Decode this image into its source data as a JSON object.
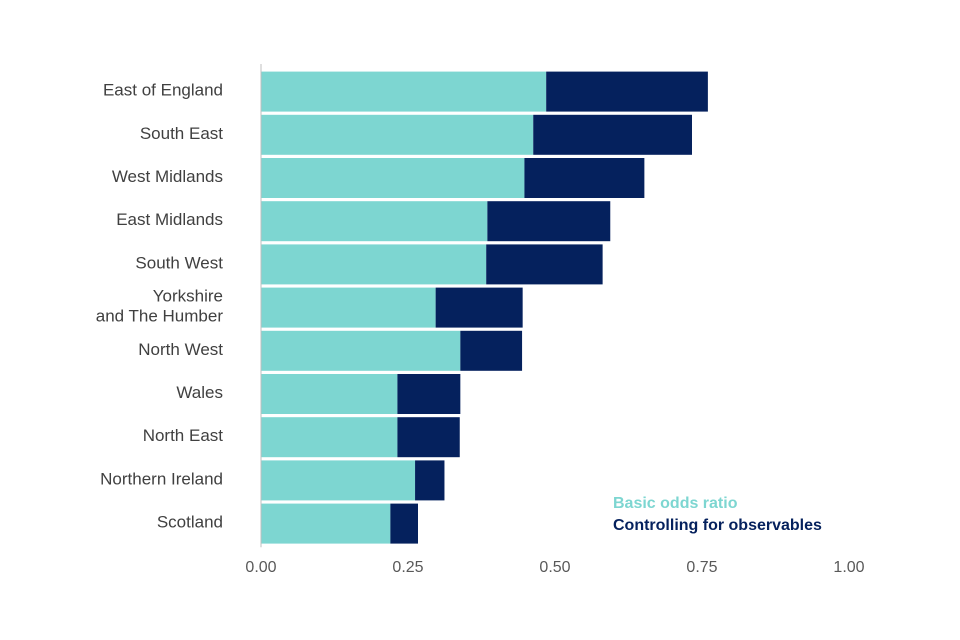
{
  "chart_data": {
    "type": "bar",
    "orientation": "horizontal",
    "stacked": true,
    "title": "",
    "xlabel": "",
    "ylabel": "",
    "categories": [
      "East of England",
      "South East",
      "West Midlands",
      "East Midlands",
      "South West",
      "Yorkshire and The Humber",
      "North West",
      "Wales",
      "North East",
      "Northern Ireland",
      "Scotland"
    ],
    "category_lines": [
      [
        "East of England"
      ],
      [
        "South East"
      ],
      [
        "West Midlands"
      ],
      [
        "East Midlands"
      ],
      [
        "South West"
      ],
      [
        "Yorkshire",
        "and The Humber"
      ],
      [
        "North West"
      ],
      [
        "Wales"
      ],
      [
        "North East"
      ],
      [
        "Northern Ireland"
      ],
      [
        "Scotland"
      ]
    ],
    "series": [
      {
        "name": "Basic odds ratio",
        "color": "#7dd6d1",
        "values": [
          0.485,
          0.463,
          0.448,
          0.385,
          0.383,
          0.297,
          0.339,
          0.232,
          0.232,
          0.262,
          0.22
        ]
      },
      {
        "name": "Controlling for observables",
        "color": "#05215d",
        "values": [
          0.275,
          0.27,
          0.204,
          0.209,
          0.198,
          0.148,
          0.105,
          0.107,
          0.106,
          0.05,
          0.047
        ]
      }
    ],
    "xlim": [
      0,
      1
    ],
    "xticks": [
      0,
      0.25,
      0.5,
      0.75,
      1
    ],
    "xtick_labels": [
      "0.00",
      "0.25",
      "0.50",
      "0.75",
      "1.00"
    ],
    "grid": false,
    "legend_position": "bottom-right"
  }
}
